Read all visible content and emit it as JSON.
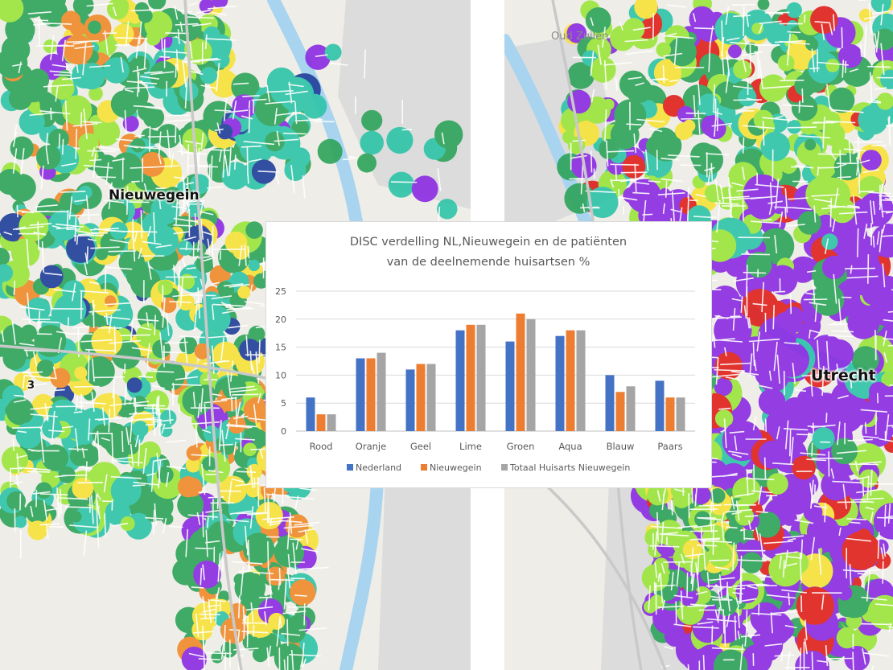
{
  "maps": {
    "left_place_label": "Nieuwegein",
    "left_marker_label": "3",
    "right_place_label": "Utrecht",
    "right_minor_label": "Oud Zuilen"
  },
  "colors": {
    "nederland": "#4472c4",
    "nieuwegein": "#ed7d31",
    "totaal": "#a5a5a5",
    "map_green": "#2ea35a",
    "map_aqua": "#2ec4a8",
    "map_lime": "#9be63c",
    "map_yellow": "#f7e33a",
    "map_orange": "#f08a2a",
    "map_purple": "#8a2be2",
    "map_red": "#e0201c",
    "map_blue": "#1f3f9a",
    "water": "#a8d4f0"
  },
  "chart_data": {
    "type": "bar",
    "title_line1": "DISC verdelling NL,Nieuwegein en de patiënten",
    "title_line2": "van de deelnemende huisartsen %",
    "categories": [
      "Rood",
      "Oranje",
      "Geel",
      "Lime",
      "Groen",
      "Aqua",
      "Blauw",
      "Paars"
    ],
    "series": [
      {
        "name": "Nederland",
        "values": [
          6,
          13,
          11,
          18,
          16,
          17,
          10,
          9
        ]
      },
      {
        "name": "Nieuwegein",
        "values": [
          3,
          13,
          12,
          19,
          21,
          18,
          7,
          6
        ]
      },
      {
        "name": "Totaal Huisarts Nieuwegein",
        "values": [
          3,
          14,
          12,
          19,
          20,
          18,
          8,
          6
        ]
      }
    ],
    "ylim": [
      0,
      25
    ],
    "yticks": [
      0,
      5,
      10,
      15,
      20,
      25
    ],
    "grid": true,
    "legend": "bottom"
  }
}
